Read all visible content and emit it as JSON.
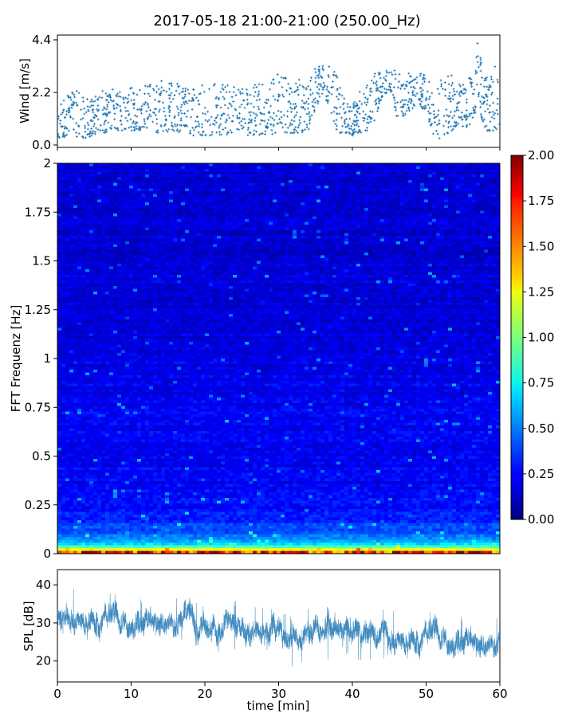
{
  "title": "2017-05-18 21:00-21:00 (250.00_Hz)",
  "colors": {
    "series": "#1f77b4",
    "axis": "#000000"
  },
  "chart_data": [
    {
      "type": "scatter",
      "name": "wind",
      "ylabel": "Wind [m/s]",
      "xlim": [
        0,
        60
      ],
      "ylim": [
        -0.1,
        4.6
      ],
      "yticks": [
        {
          "value": 0.0,
          "label": "0.0"
        },
        {
          "value": 2.2,
          "label": "2.2"
        },
        {
          "value": 4.4,
          "label": "4.4"
        }
      ],
      "envelope": {
        "x": [
          0,
          2,
          4,
          6,
          8,
          10,
          12,
          14,
          16,
          18,
          20,
          22,
          24,
          26,
          28,
          30,
          32,
          33,
          34,
          35,
          36,
          37,
          38,
          39,
          40,
          41,
          42,
          43,
          44,
          45,
          46,
          47,
          48,
          49,
          50,
          51,
          52,
          53,
          54,
          55,
          56,
          57,
          58,
          59,
          60
        ],
        "low": [
          0.3,
          0.3,
          0.3,
          0.5,
          0.6,
          0.6,
          0.6,
          0.5,
          0.5,
          0.4,
          0.4,
          0.4,
          0.4,
          0.4,
          0.4,
          0.5,
          0.5,
          0.5,
          0.6,
          1.5,
          2.2,
          1.5,
          0.5,
          0.5,
          0.4,
          0.5,
          0.6,
          1.0,
          2.0,
          2.3,
          1.2,
          1.2,
          1.5,
          1.6,
          1.4,
          0.4,
          0.2,
          0.5,
          0.7,
          0.7,
          0.8,
          1.5,
          0.6,
          0.6,
          0.6
        ],
        "high": [
          2.4,
          2.4,
          2.0,
          2.3,
          2.4,
          2.4,
          2.5,
          2.8,
          2.6,
          2.4,
          2.6,
          2.6,
          2.6,
          2.4,
          2.7,
          3.0,
          2.6,
          2.8,
          2.6,
          3.3,
          3.4,
          3.6,
          2.8,
          2.0,
          1.6,
          2.4,
          2.6,
          3.0,
          3.1,
          3.2,
          3.1,
          3.0,
          3.0,
          3.0,
          3.0,
          2.2,
          2.8,
          3.0,
          2.8,
          2.6,
          3.0,
          4.4,
          2.8,
          3.4,
          3.4
        ]
      },
      "count": 1400
    },
    {
      "type": "heatmap",
      "name": "spectrogram",
      "ylabel": "FFT Frequenz [Hz]",
      "xlim": [
        0,
        60
      ],
      "ylim": [
        0,
        2
      ],
      "yticks": [
        "0",
        "0.25",
        "0.5",
        "0.75",
        "1",
        "1.25",
        "1.5",
        "1.75",
        "2"
      ],
      "colorbar": {
        "colormap": "jet",
        "range": [
          0.0,
          2.0
        ],
        "ticks": [
          "0.00",
          "0.25",
          "0.50",
          "0.75",
          "1.00",
          "1.25",
          "1.50",
          "1.75",
          "2.00"
        ]
      },
      "profile": {
        "freq": [
          0.0,
          0.02,
          0.05,
          0.08,
          0.12,
          0.2,
          0.3,
          0.5,
          0.8,
          1.2,
          1.6,
          2.0
        ],
        "mean": [
          1.8,
          1.2,
          0.7,
          0.5,
          0.4,
          0.3,
          0.25,
          0.22,
          0.22,
          0.18,
          0.17,
          0.16
        ]
      }
    },
    {
      "type": "line",
      "name": "spl",
      "ylabel": "SPL [dB]",
      "xlabel": "time [min]",
      "xlim": [
        0,
        60
      ],
      "ylim": [
        14.5,
        44.0
      ],
      "yticks": [
        "20",
        "30",
        "40"
      ],
      "xticks": [
        "0",
        "10",
        "20",
        "30",
        "40",
        "50",
        "60"
      ],
      "envelope": {
        "x": [
          0,
          3,
          6,
          9,
          12,
          15,
          18,
          21,
          24,
          27,
          30,
          32,
          34,
          36,
          38,
          40,
          42,
          44,
          46,
          48,
          50,
          52,
          54,
          56,
          58,
          60
        ],
        "low": [
          24,
          25,
          25,
          25,
          26,
          25,
          24,
          22,
          23,
          22,
          23,
          18,
          20,
          21,
          19,
          21,
          19,
          20,
          20,
          21,
          20,
          22,
          20,
          21,
          18,
          21
        ],
        "high": [
          40,
          39,
          39,
          38,
          37,
          39,
          37,
          35,
          36,
          35,
          34,
          32,
          34,
          36,
          34,
          33,
          38,
          35,
          33,
          32,
          34,
          33,
          33,
          32,
          33,
          33
        ],
        "mean": [
          32,
          31.5,
          31,
          31,
          31,
          31.5,
          30,
          28.5,
          29,
          28,
          28.5,
          25,
          27,
          28,
          26.5,
          27,
          28,
          27,
          26.5,
          26,
          26.5,
          27,
          26,
          26,
          25.5,
          26
        ]
      },
      "count": 3600
    }
  ]
}
